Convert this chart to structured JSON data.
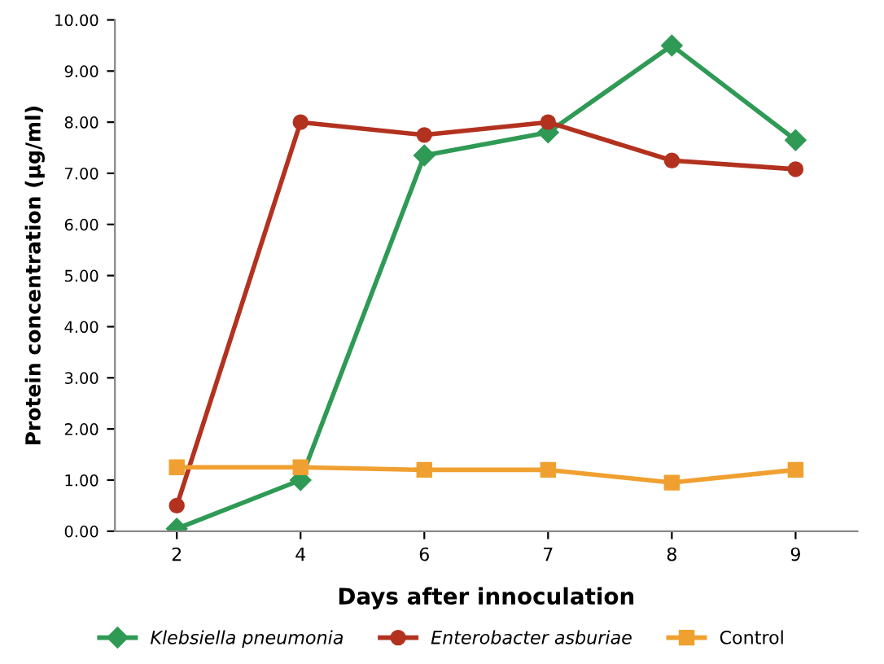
{
  "chart_data": {
    "type": "line",
    "xlabel": "Days after innoculation",
    "ylabel": "Protein concentration (µg/ml)",
    "categories": [
      "2",
      "4",
      "6",
      "7",
      "8",
      "9"
    ],
    "series": [
      {
        "name": "Klebsiella pneumonia",
        "color": "#2f9a55",
        "marker": "diamond",
        "values": [
          0.05,
          1.0,
          7.35,
          7.8,
          9.5,
          7.65
        ]
      },
      {
        "name": "Enterobacter asburiae",
        "color": "#b3321f",
        "marker": "circle",
        "values": [
          0.5,
          8.0,
          7.75,
          8.0,
          7.25,
          7.08
        ]
      },
      {
        "name": "Control",
        "color": "#f0a030",
        "marker": "square",
        "values": [
          1.25,
          1.25,
          1.2,
          1.2,
          0.95,
          1.2
        ]
      }
    ],
    "ylim": [
      0,
      10
    ],
    "yticks": [
      {
        "value": 0,
        "label": "0.00"
      },
      {
        "value": 1,
        "label": "1.00"
      },
      {
        "value": 2,
        "label": "2.00"
      },
      {
        "value": 3,
        "label": "3.00"
      },
      {
        "value": 4,
        "label": "4.00"
      },
      {
        "value": 5,
        "label": "5.00"
      },
      {
        "value": 6,
        "label": "6.00"
      },
      {
        "value": 7,
        "label": "7.00"
      },
      {
        "value": 8,
        "label": "8.00"
      },
      {
        "value": 9,
        "label": "9.00"
      },
      {
        "value": 10,
        "label": "10.00"
      }
    ],
    "grid": false,
    "legend": "bottom",
    "line_style": "solid"
  }
}
